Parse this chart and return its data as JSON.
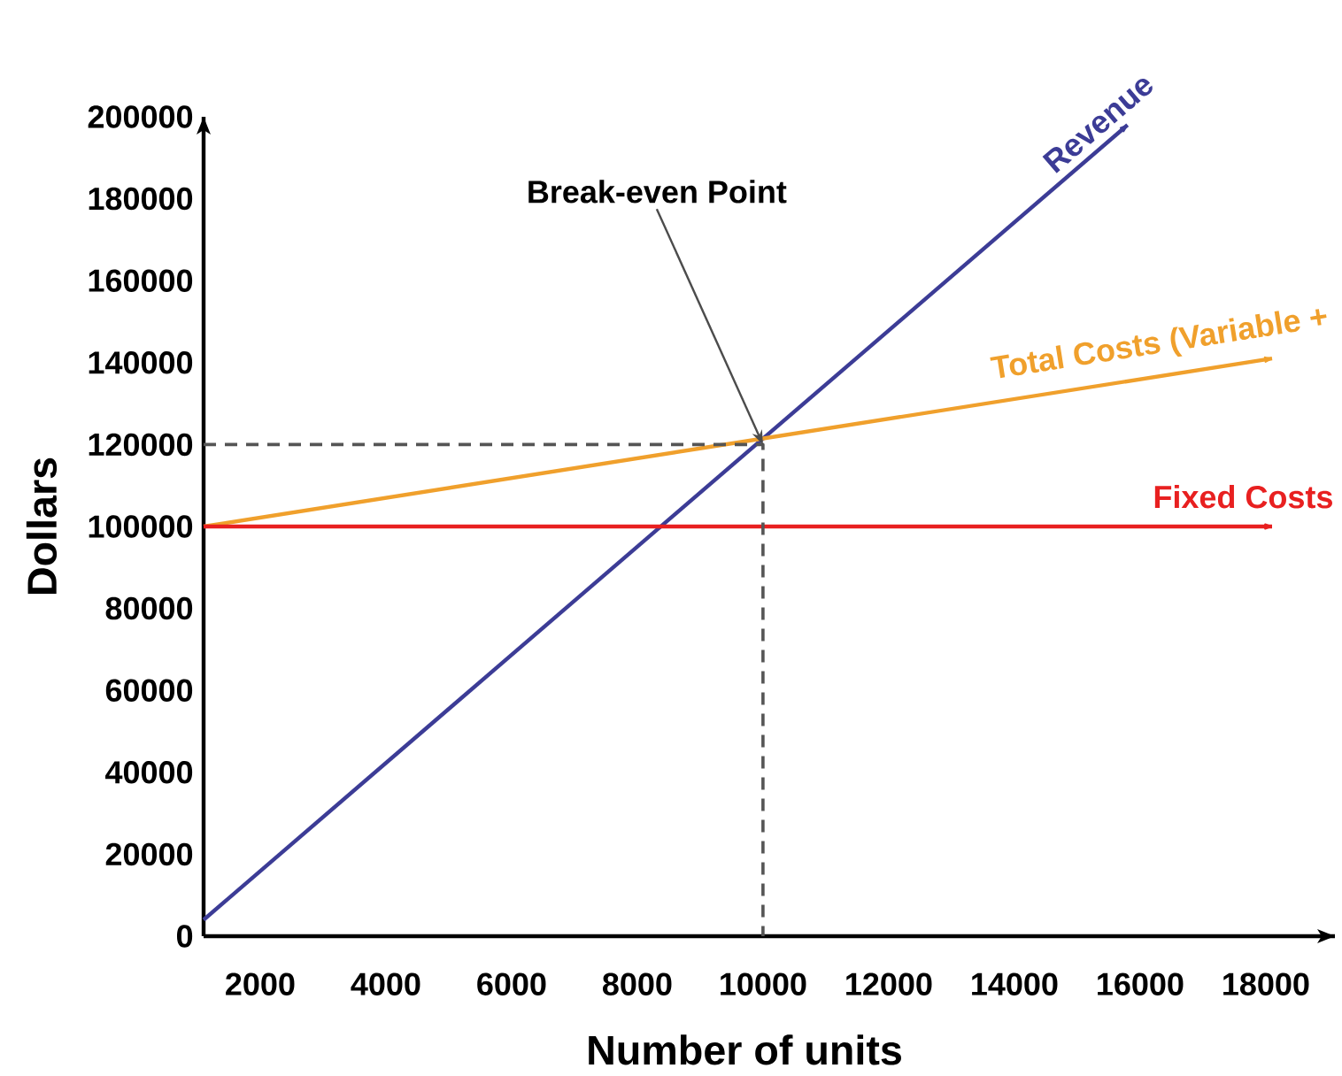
{
  "chart_data": {
    "type": "line",
    "xlabel": "Number of units",
    "ylabel": "Dollars",
    "xlim": [
      1100,
      19100
    ],
    "xticks": [
      2000,
      4000,
      6000,
      8000,
      10000,
      12000,
      14000,
      16000,
      18000
    ],
    "ylim": [
      0,
      200000
    ],
    "yticks": [
      0,
      20000,
      40000,
      60000,
      80000,
      100000,
      120000,
      140000,
      160000,
      180000,
      200000
    ],
    "series": [
      {
        "name": "Revenue",
        "color": "#3c3c96",
        "x": [
          1100,
          15800
        ],
        "values": [
          4000,
          198000
        ]
      },
      {
        "name": "Total Costs (Variable +",
        "color": "#f0a02c",
        "x": [
          1100,
          18100
        ],
        "values": [
          100000,
          141000
        ]
      },
      {
        "name": "Fixed Costs",
        "color": "#e82020",
        "x": [
          1100,
          18100
        ],
        "values": [
          100000,
          100000
        ]
      },
      {
        "color": "#555555",
        "line_style": "dashed",
        "x": [
          1100,
          10000,
          10000
        ],
        "values": [
          120000,
          120000,
          0
        ]
      }
    ],
    "annotations": [
      {
        "text": "Break-even Point",
        "x": 10000,
        "y": 120000
      }
    ]
  }
}
